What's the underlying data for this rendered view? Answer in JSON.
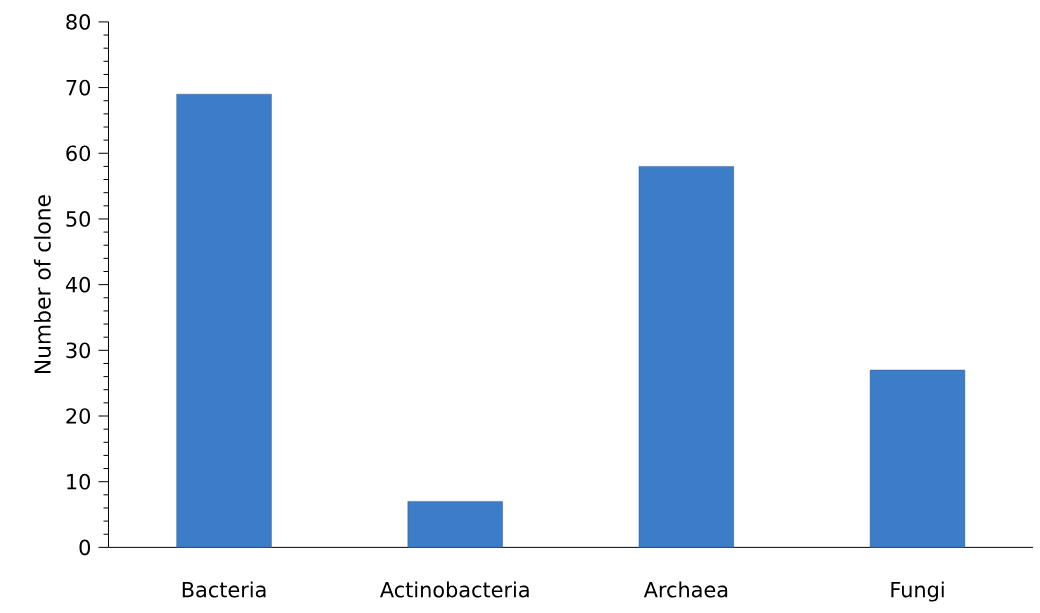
{
  "chart_data": {
    "type": "bar",
    "ylabel": "Number of clone",
    "categories": [
      "Bacteria",
      "Actinobacteria",
      "Archaea",
      "Fungi"
    ],
    "values": [
      69,
      7,
      58,
      27
    ],
    "color": "#3d7cc9",
    "ylim": [
      0,
      80
    ],
    "yticks": [
      0,
      {
        "value": 2,
        "label": null
      },
      {
        "value": 4,
        "label": null
      },
      {
        "value": 6,
        "label": null
      },
      {
        "value": 8,
        "label": null
      },
      10,
      {
        "value": 12,
        "label": null
      },
      {
        "value": 14,
        "label": null
      },
      {
        "value": 16,
        "label": null
      },
      {
        "value": 18,
        "label": null
      },
      20,
      {
        "value": 22,
        "label": null
      },
      {
        "value": 24,
        "label": null
      },
      {
        "value": 26,
        "label": null
      },
      {
        "value": 28,
        "label": null
      },
      30,
      {
        "value": 32,
        "label": null
      },
      {
        "value": 34,
        "label": null
      },
      {
        "value": 36,
        "label": null
      },
      {
        "value": 38,
        "label": null
      },
      40,
      {
        "value": 42,
        "label": null
      },
      {
        "value": 44,
        "label": null
      },
      {
        "value": 46,
        "label": null
      },
      {
        "value": 48,
        "label": null
      },
      50,
      {
        "value": 52,
        "label": null
      },
      {
        "value": 54,
        "label": null
      },
      {
        "value": 56,
        "label": null
      },
      {
        "value": 58,
        "label": null
      },
      60,
      {
        "value": 62,
        "label": null
      },
      {
        "value": 64,
        "label": null
      },
      {
        "value": 66,
        "label": null
      },
      {
        "value": 68,
        "label": null
      },
      70,
      {
        "value": 72,
        "label": null
      },
      {
        "value": 74,
        "label": null
      },
      {
        "value": 76,
        "label": null
      },
      {
        "value": 78,
        "label": null
      },
      80
    ],
    "grid": false
  }
}
